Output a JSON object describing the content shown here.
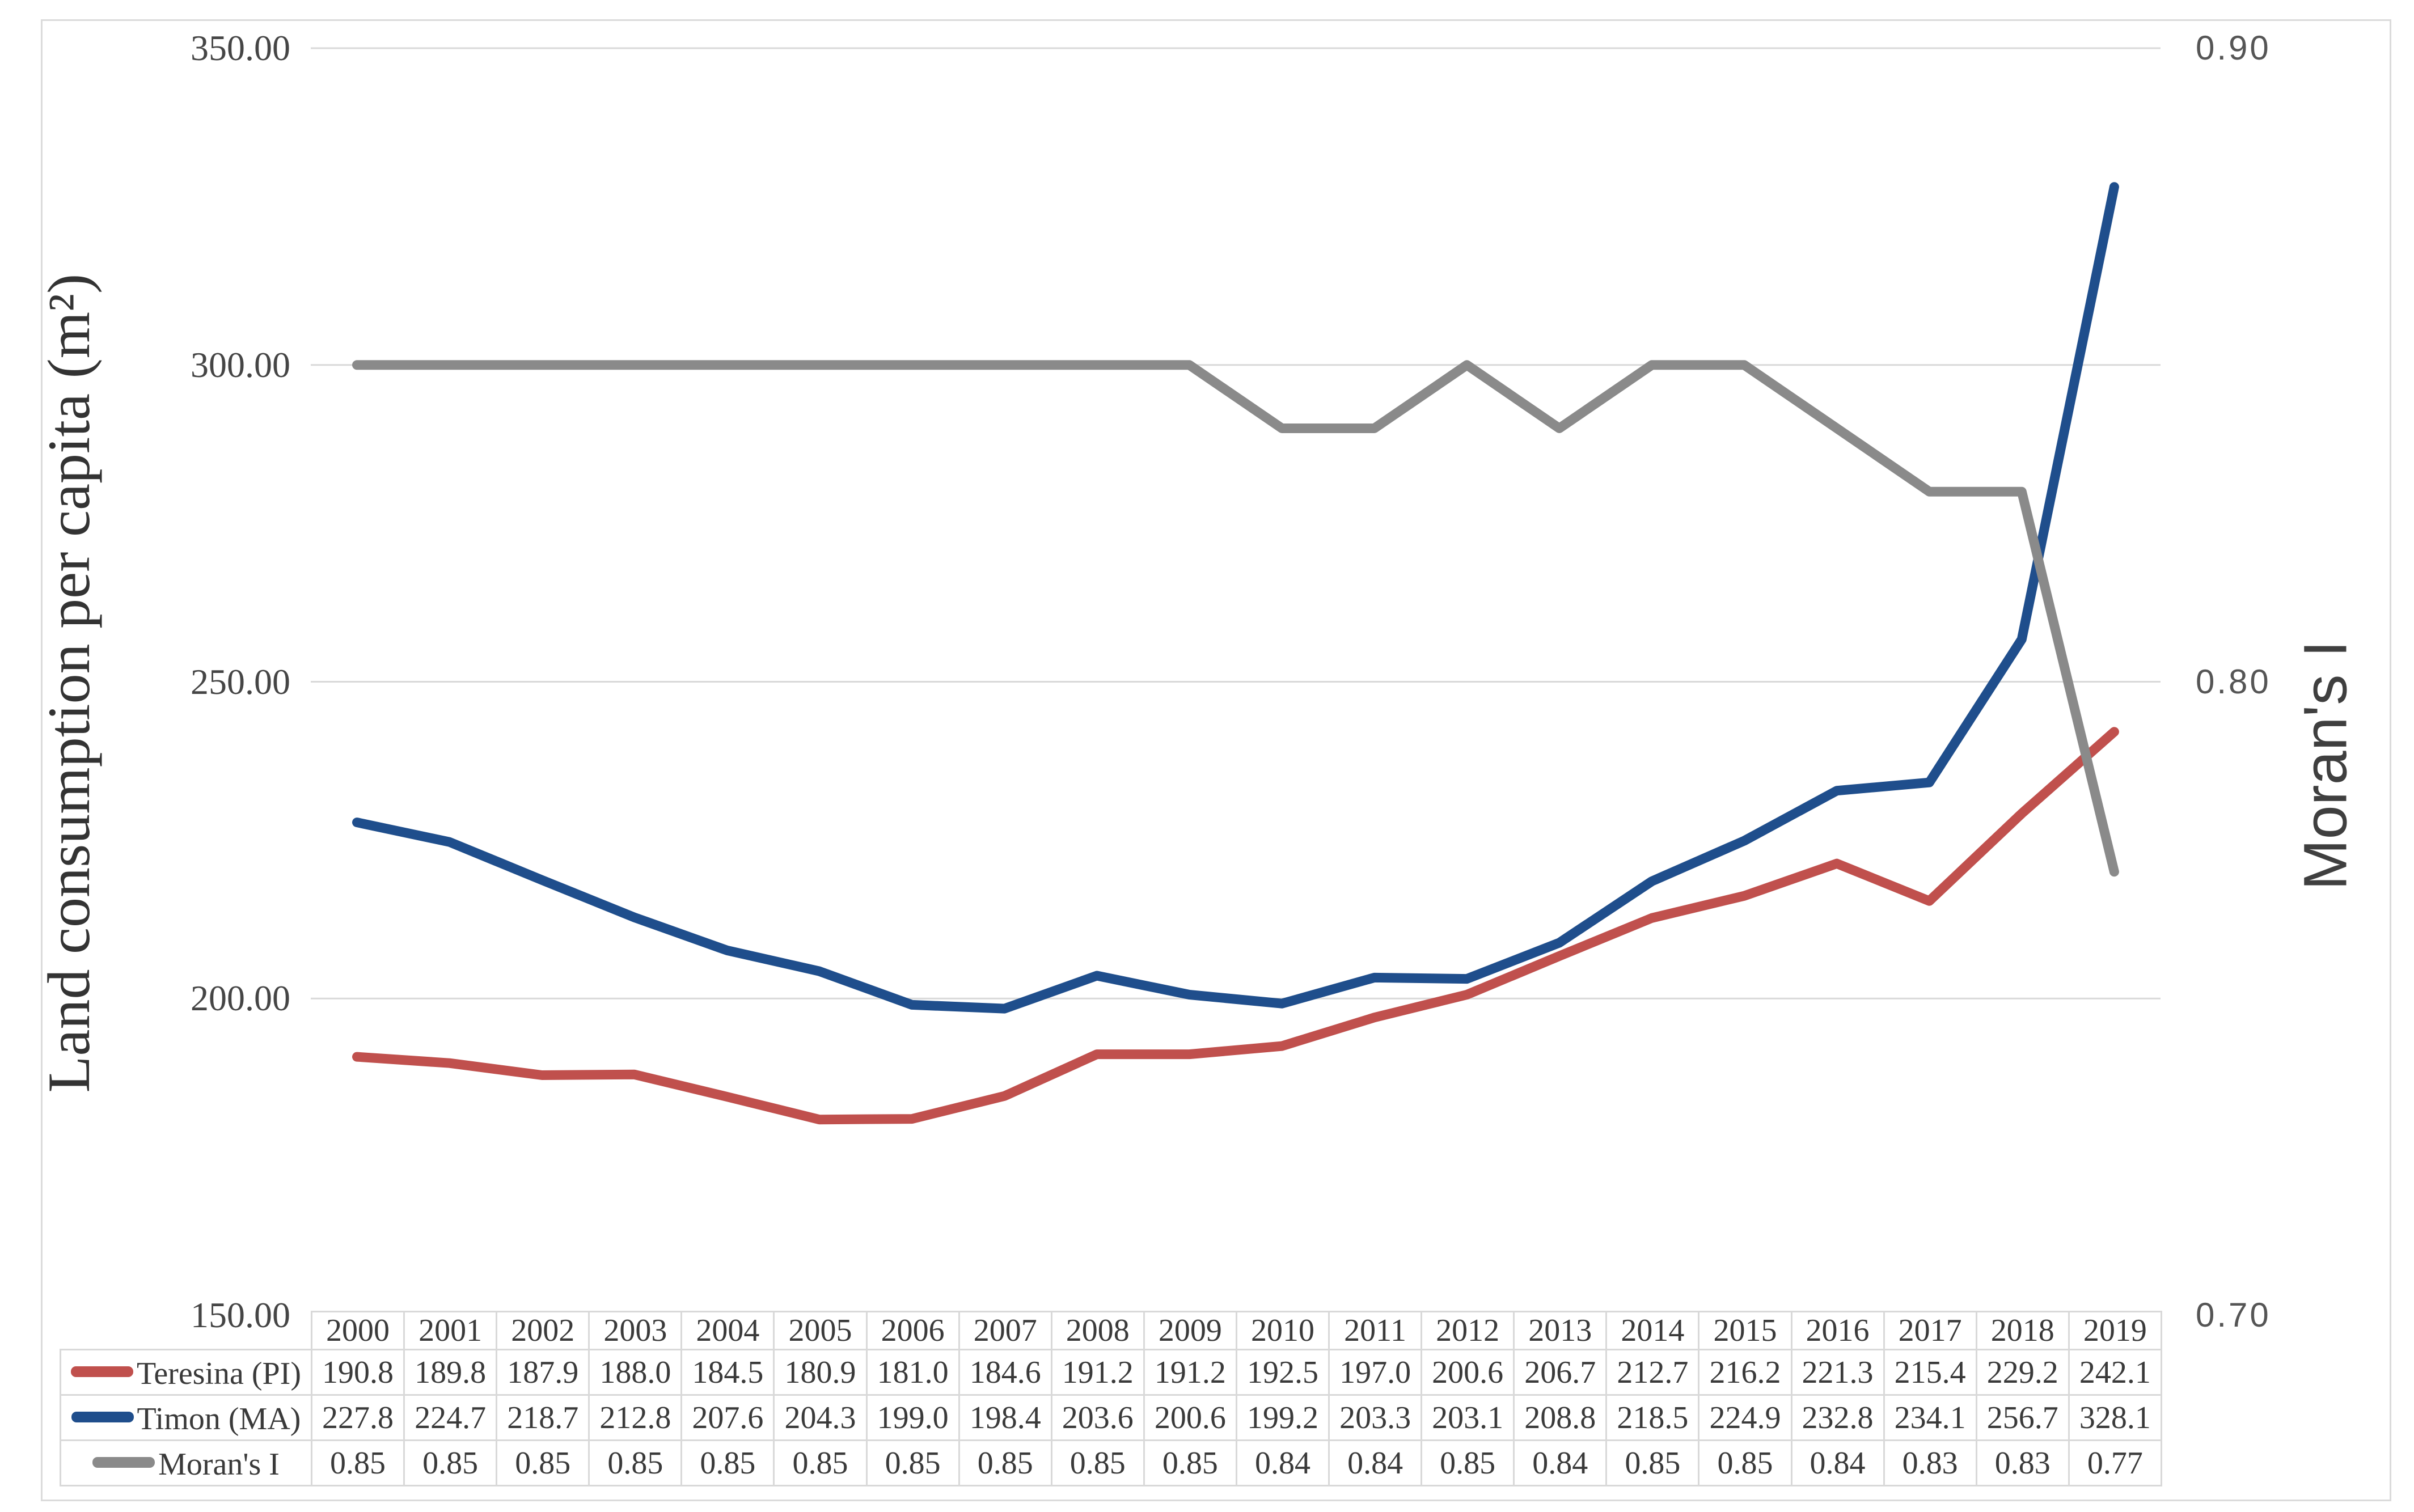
{
  "chart_data": {
    "type": "line",
    "title": "",
    "x": [
      2000,
      2001,
      2002,
      2003,
      2004,
      2005,
      2006,
      2007,
      2008,
      2009,
      2010,
      2011,
      2012,
      2013,
      2014,
      2015,
      2016,
      2017,
      2018,
      2019
    ],
    "series": [
      {
        "name": "Teresina (PI)",
        "key": "teresina-pi",
        "color": "#C0504D",
        "axis": "primary",
        "decimals": 1,
        "values": [
          190.8,
          189.8,
          187.9,
          188.0,
          184.5,
          180.9,
          181.0,
          184.6,
          191.2,
          191.2,
          192.5,
          197.0,
          200.6,
          206.7,
          212.7,
          216.2,
          221.3,
          215.4,
          229.2,
          242.1
        ]
      },
      {
        "name": "Timon (MA)",
        "key": "timon-ma",
        "color": "#1F4E8C",
        "axis": "primary",
        "decimals": 1,
        "values": [
          227.8,
          224.7,
          218.7,
          212.8,
          207.6,
          204.3,
          199.0,
          198.4,
          203.6,
          200.6,
          199.2,
          203.3,
          203.1,
          208.8,
          218.5,
          224.9,
          232.8,
          234.1,
          256.7,
          328.1
        ]
      },
      {
        "name": "Moran's I",
        "key": "morans-i",
        "color": "#8A8A8A",
        "axis": "secondary",
        "decimals": 2,
        "values": [
          0.85,
          0.85,
          0.85,
          0.85,
          0.85,
          0.85,
          0.85,
          0.85,
          0.85,
          0.85,
          0.84,
          0.84,
          0.85,
          0.84,
          0.85,
          0.85,
          0.84,
          0.83,
          0.83,
          0.77
        ]
      }
    ],
    "left_axis": {
      "label": "Land consumption per capita (m²)",
      "min": 150,
      "max": 350,
      "tick_labels": [
        "350.00",
        "300.00",
        "250.00",
        "200.00",
        "150.00"
      ]
    },
    "right_axis": {
      "label": "Moran's I",
      "min": 0.7,
      "max": 0.9,
      "tick_labels": [
        "0.90",
        "0.80",
        "0.70"
      ]
    },
    "grid": true,
    "grid_color": "#D9D9D9",
    "legend_position": "table-rows-left"
  }
}
